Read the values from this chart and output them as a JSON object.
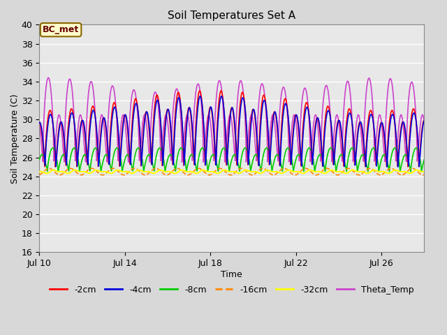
{
  "title": "Soil Temperatures Set A",
  "xlabel": "Time",
  "ylabel": "Soil Temperature (C)",
  "ylim": [
    16,
    40
  ],
  "yticks": [
    16,
    18,
    20,
    22,
    24,
    26,
    28,
    30,
    32,
    34,
    36,
    38,
    40
  ],
  "x_tick_days": [
    10,
    14,
    18,
    22,
    26
  ],
  "x_tick_labels": [
    "Jul 10",
    "Jul 14",
    "Jul 18",
    "Jul 22",
    "Jul 26"
  ],
  "series": {
    "-2cm": {
      "color": "#ff0000",
      "lw": 1.2,
      "ls": "-",
      "zorder": 4
    },
    "-4cm": {
      "color": "#0000dd",
      "lw": 1.2,
      "ls": "-",
      "zorder": 5
    },
    "-8cm": {
      "color": "#00cc00",
      "lw": 1.2,
      "ls": "-",
      "zorder": 3
    },
    "-16cm": {
      "color": "#ff8800",
      "lw": 1.2,
      "ls": "--",
      "zorder": 3
    },
    "-32cm": {
      "color": "#ffff00",
      "lw": 1.5,
      "ls": "-",
      "zorder": 6
    },
    "Theta_Temp": {
      "color": "#cc44cc",
      "lw": 1.2,
      "ls": "-",
      "zorder": 2
    }
  },
  "annotation_text": "BC_met",
  "fig_bg": "#d8d8d8",
  "plot_bg": "#e8e8e8",
  "grid_color": "#ffffff",
  "title_fontsize": 11,
  "axis_fontsize": 9,
  "legend_fontsize": 9
}
